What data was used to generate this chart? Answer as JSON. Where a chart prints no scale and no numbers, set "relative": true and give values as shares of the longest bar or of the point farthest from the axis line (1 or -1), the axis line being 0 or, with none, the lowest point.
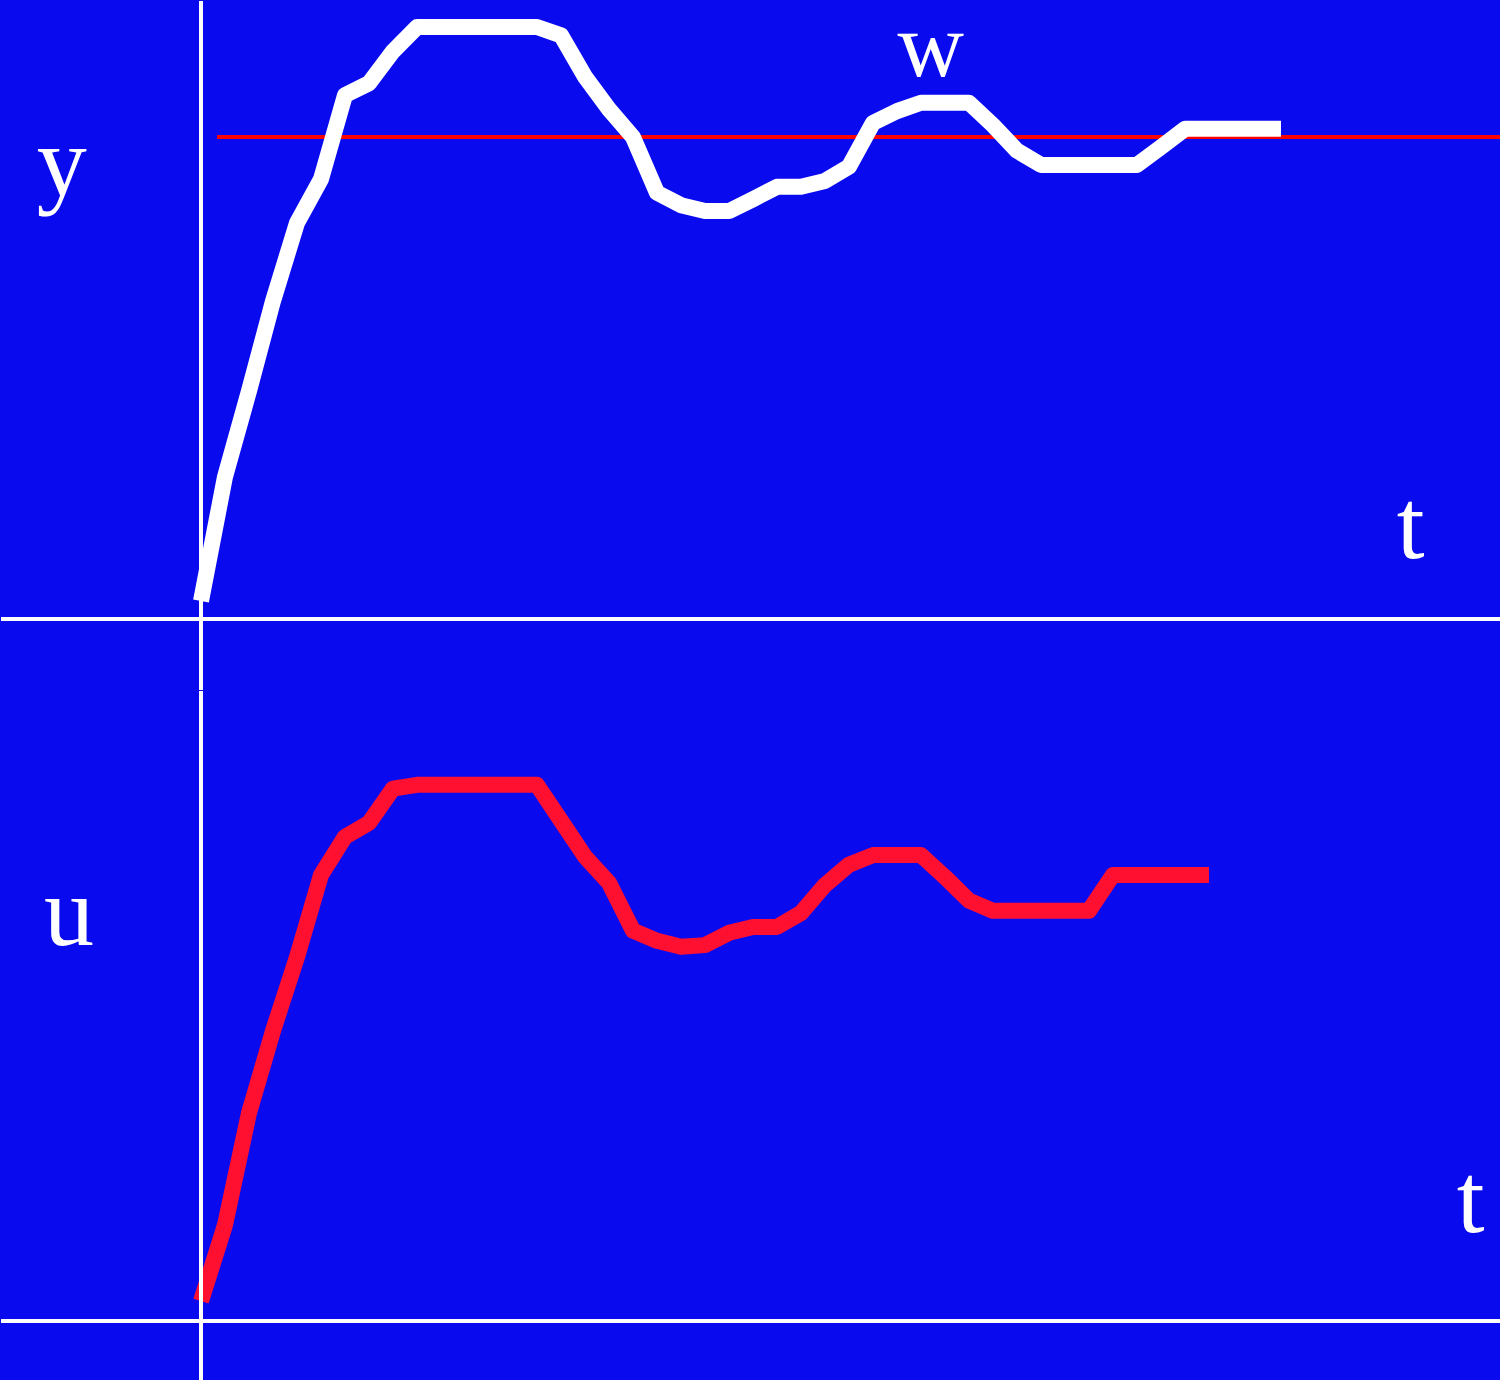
{
  "chart_data": [
    {
      "type": "line",
      "relative": true,
      "xlabel": "t",
      "ylabel": "y",
      "line_style": "solid",
      "categories": [
        null,
        null,
        null,
        null,
        null,
        null,
        null,
        null,
        null,
        null,
        null,
        null,
        null,
        null,
        null,
        null,
        null,
        null,
        null,
        null,
        null,
        null,
        null,
        null,
        null,
        null,
        null,
        null,
        null,
        null,
        null,
        null,
        null,
        null,
        null,
        null,
        null,
        null,
        null,
        null,
        null,
        null,
        null,
        null,
        null,
        null
      ],
      "series": [
        {
          "color": "#ffffff",
          "values": [
            0.03,
            0.24,
            0.385,
            0.537,
            0.669,
            0.743,
            0.885,
            0.905,
            0.959,
            1,
            1,
            1,
            1,
            1,
            1,
            0.986,
            0.916,
            0.861,
            0.814,
            0.72,
            0.699,
            0.689,
            0.689,
            0.709,
            0.73,
            0.73,
            0.74,
            0.764,
            0.838,
            0.858,
            0.872,
            0.872,
            0.872,
            0.834,
            0.791,
            0.767,
            0.767,
            0.767,
            0.767,
            0.767,
            0.797,
            0.828,
            0.828,
            0.828,
            0.828,
            0.828
          ]
        }
      ],
      "ref_lines": [
        {
          "axis": "y",
          "value": 0.814,
          "label": "w",
          "color": "#ff0000",
          "line_style": "solid"
        }
      ]
    },
    {
      "type": "line",
      "relative": true,
      "xlabel": "t",
      "ylabel": "u",
      "line_style": "solid",
      "categories": [
        null,
        null,
        null,
        null,
        null,
        null,
        null,
        null,
        null,
        null,
        null,
        null,
        null,
        null,
        null,
        null,
        null,
        null,
        null,
        null,
        null,
        null,
        null,
        null,
        null,
        null,
        null,
        null,
        null,
        null,
        null,
        null,
        null,
        null,
        null,
        null,
        null,
        null,
        null,
        null,
        null,
        null,
        null
      ],
      "series": [
        {
          "color": "#ff1030",
          "values": [
            0.037,
            0.179,
            0.388,
            0.541,
            0.679,
            0.832,
            0.903,
            0.929,
            0.993,
            1,
            1,
            1,
            1,
            1,
            1,
            0.933,
            0.866,
            0.817,
            0.728,
            0.709,
            0.698,
            0.701,
            0.724,
            0.735,
            0.735,
            0.761,
            0.813,
            0.851,
            0.869,
            0.869,
            0.869,
            0.828,
            0.784,
            0.765,
            0.765,
            0.765,
            0.765,
            0.765,
            0.832,
            0.832,
            0.832,
            0.832,
            0.832
          ]
        }
      ]
    }
  ]
}
